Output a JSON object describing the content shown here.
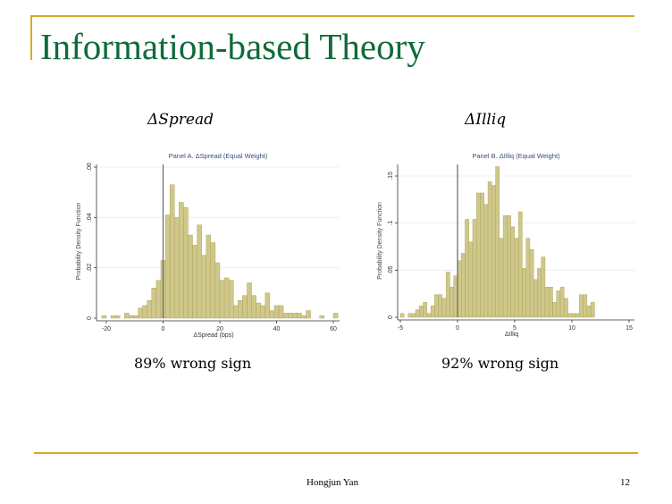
{
  "slide": {
    "title": "Information-based Theory",
    "footer_author": "Hongjun Yan",
    "page_number": "12"
  },
  "left": {
    "heading": "ΔSpread",
    "note": "89% wrong sign"
  },
  "right": {
    "heading": "ΔIlliq",
    "note": "92% wrong sign"
  },
  "colors": {
    "bar": "#cfc88a",
    "bar_edge": "#a59f55",
    "title": "#0f6b3a",
    "rule": "#d4aa2a"
  },
  "chart_data": [
    {
      "type": "bar",
      "title": "Panel A. ΔSpread (Equal Weight)",
      "xlabel": "ΔSpread (bps)",
      "ylabel": "Probability Density Function",
      "xlim": [
        -22,
        60
      ],
      "ylim": [
        0,
        0.06
      ],
      "xticks": [
        "-20",
        "0",
        "20",
        "40",
        "60"
      ],
      "xtick_values": [
        -20,
        0,
        20,
        40,
        60
      ],
      "yticks": [
        "0",
        ".02",
        ".04",
        ".06"
      ],
      "ytick_values": [
        0,
        0.02,
        0.04,
        0.06
      ],
      "bin_start": -21.6,
      "bin_width": 1.6,
      "values": [
        0.001,
        0,
        0.001,
        0.001,
        0,
        0.002,
        0.001,
        0.001,
        0.004,
        0.005,
        0.007,
        0.012,
        0.015,
        0.023,
        0.041,
        0.053,
        0.04,
        0.046,
        0.044,
        0.033,
        0.029,
        0.037,
        0.025,
        0.033,
        0.03,
        0.022,
        0.015,
        0.016,
        0.015,
        0.005,
        0.007,
        0.009,
        0.014,
        0.009,
        0.006,
        0.005,
        0.01,
        0.003,
        0.005,
        0.005,
        0.002,
        0.002,
        0.002,
        0.002,
        0.001,
        0.003,
        0,
        0,
        0.001,
        0,
        0,
        0.002
      ]
    },
    {
      "type": "bar",
      "title": "Panel B. ΔIlliq (Equal Weight)",
      "xlabel": "ΔIlliq",
      "ylabel": "Probability Density Function",
      "xlim": [
        -5.5,
        15
      ],
      "ylim": [
        0,
        0.16
      ],
      "xticks": [
        "-5",
        "0",
        "5",
        "10",
        "15"
      ],
      "xtick_values": [
        -5,
        0,
        5,
        10,
        15
      ],
      "yticks": [
        "0",
        ".05",
        ".1",
        ".15"
      ],
      "ytick_values": [
        0,
        0.05,
        0.1,
        0.15
      ],
      "bin_start": -5.0,
      "bin_width": 0.333,
      "values": [
        0.004,
        0,
        0.004,
        0.004,
        0.008,
        0.012,
        0.016,
        0.004,
        0.012,
        0.024,
        0.024,
        0.02,
        0.048,
        0.032,
        0.044,
        0.06,
        0.068,
        0.104,
        0.08,
        0.104,
        0.132,
        0.132,
        0.12,
        0.144,
        0.14,
        0.16,
        0.084,
        0.108,
        0.108,
        0.096,
        0.084,
        0.112,
        0.052,
        0.084,
        0.072,
        0.04,
        0.052,
        0.064,
        0.032,
        0.032,
        0.016,
        0.028,
        0.032,
        0.02,
        0.004,
        0.004,
        0.004,
        0.024,
        0.024,
        0.012,
        0.016
      ]
    }
  ]
}
